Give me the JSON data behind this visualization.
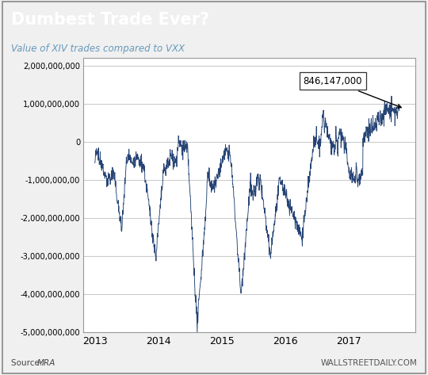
{
  "title": "Dumbest Trade Ever?",
  "subtitle": "Value of XIV trades compared to VXX",
  "title_bg_color": "#1a3a5c",
  "title_text_color": "#ffffff",
  "subtitle_color": "#6699bb",
  "line_color": "#1a3a6e",
  "bg_color": "#f0f0f0",
  "plot_bg_color": "#ffffff",
  "grid_color": "#cccccc",
  "annotation_text": "846,147,000",
  "source_text": "Source: ",
  "source_italic": "MRA",
  "watermark_text": "WALLSTREETDAILY.COM",
  "ylim": [
    -5000000000,
    2200000000
  ],
  "yticks": [
    -5000000000,
    -4000000000,
    -3000000000,
    -2000000000,
    -1000000000,
    0,
    1000000000,
    2000000000
  ],
  "xtick_labels": [
    "2013",
    "2014",
    "2015",
    "2016",
    "2017"
  ],
  "border_color": "#999999"
}
